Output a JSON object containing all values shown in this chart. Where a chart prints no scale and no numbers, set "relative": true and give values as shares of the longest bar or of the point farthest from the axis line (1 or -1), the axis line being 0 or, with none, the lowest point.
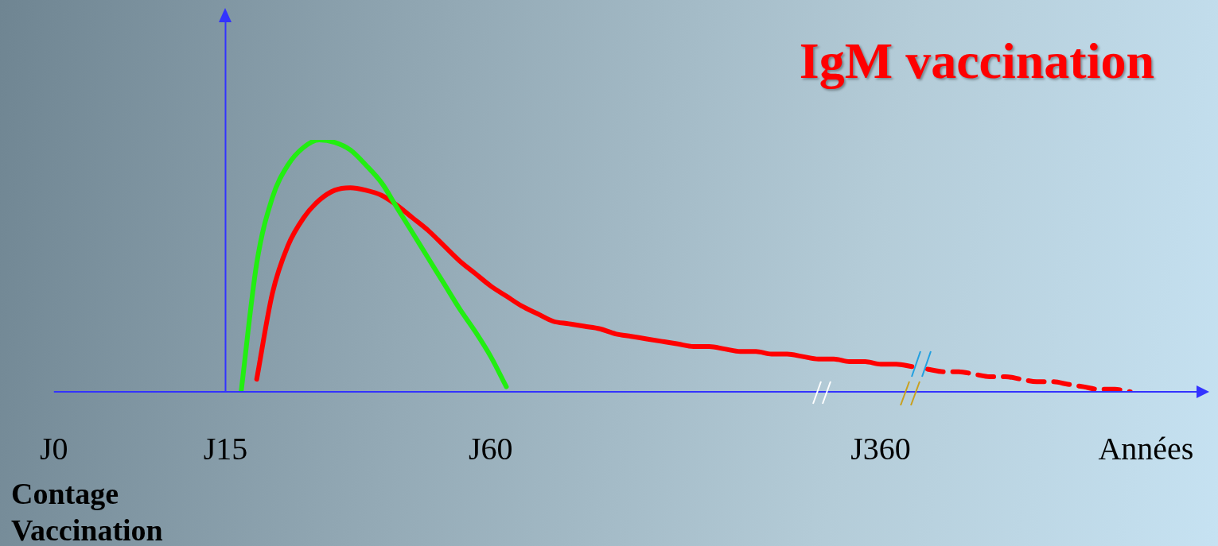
{
  "chart_data": {
    "type": "line",
    "relative": true,
    "legend": "top right",
    "marker": "none",
    "tick_labels": "x",
    "categories": [
      "J0",
      null,
      null,
      null,
      null,
      null,
      null,
      null,
      null,
      null,
      null,
      "J15",
      null,
      null,
      null,
      null,
      null,
      null,
      null,
      null,
      null,
      null,
      null,
      null,
      null,
      null,
      null,
      null,
      "J60",
      null,
      null,
      null,
      null,
      null,
      null,
      null,
      null,
      null,
      null,
      null,
      null,
      null,
      null,
      null,
      null,
      null,
      null,
      null,
      null,
      null,
      null,
      null,
      null,
      "J360",
      null,
      null,
      null,
      null,
      null,
      null,
      null,
      null,
      null,
      null,
      null,
      null,
      null,
      null,
      null,
      null,
      "Années",
      null
    ],
    "ref_lines": [
      {
        "axis": "x",
        "value": "J15",
        "color": "#3333ff"
      }
    ],
    "annotations": [
      "Contage",
      "Vaccination"
    ],
    "series": [
      {
        "color": "#22ee11",
        "values": [
          null,
          null,
          null,
          null,
          null,
          null,
          null,
          null,
          null,
          null,
          null,
          null,
          0,
          0.51,
          0.77,
          0.9,
          0.97,
          1.0,
          0.99,
          0.96,
          0.9,
          0.83,
          0.73,
          0.63,
          0.53,
          0.43,
          0.33,
          0.24,
          0.14,
          0.02,
          null,
          null,
          null,
          null,
          null,
          null,
          null,
          null,
          null,
          null,
          null,
          null,
          null,
          null,
          null,
          null,
          null,
          null,
          null,
          null,
          null,
          null,
          null,
          null,
          null,
          null,
          null,
          null,
          null,
          null,
          null,
          null,
          null,
          null,
          null,
          null,
          null,
          null,
          null,
          null,
          null,
          null
        ]
      },
      {
        "name": "IgM vaccination",
        "color": "#ff0000",
        "values": [
          null,
          null,
          null,
          null,
          null,
          null,
          null,
          null,
          null,
          null,
          null,
          null,
          null,
          0.05,
          0.39,
          0.58,
          0.69,
          0.76,
          0.8,
          0.81,
          0.8,
          0.78,
          0.74,
          0.69,
          0.64,
          0.58,
          0.52,
          0.47,
          0.42,
          0.38,
          0.34,
          0.31,
          0.28,
          0.27,
          0.26,
          0.25,
          0.23,
          0.22,
          0.21,
          0.2,
          0.19,
          0.18,
          0.18,
          0.17,
          0.16,
          0.16,
          0.15,
          0.15,
          0.14,
          0.13,
          0.13,
          0.12,
          0.12,
          0.11,
          0.11,
          0.1,
          null,
          null,
          null,
          null,
          null,
          null,
          null,
          null,
          null,
          null,
          null,
          null,
          null,
          null,
          null,
          null
        ]
      },
      {
        "color": "#ff0000",
        "line_style": "dashed",
        "values": [
          null,
          null,
          null,
          null,
          null,
          null,
          null,
          null,
          null,
          null,
          null,
          null,
          null,
          null,
          null,
          null,
          null,
          null,
          null,
          null,
          null,
          null,
          null,
          null,
          null,
          null,
          null,
          null,
          null,
          null,
          null,
          null,
          null,
          null,
          null,
          null,
          null,
          null,
          null,
          null,
          null,
          null,
          null,
          null,
          null,
          null,
          null,
          null,
          null,
          null,
          null,
          null,
          null,
          null,
          null,
          null,
          0.09,
          0.08,
          0.08,
          0.07,
          0.06,
          0.06,
          0.05,
          0.04,
          0.04,
          0.03,
          0.02,
          0.01,
          0.01,
          0,
          null,
          null
        ]
      }
    ]
  }
}
